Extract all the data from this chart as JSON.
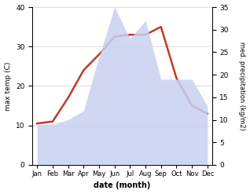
{
  "months": [
    "Jan",
    "Feb",
    "Mar",
    "Apr",
    "May",
    "Jun",
    "Jul",
    "Aug",
    "Sep",
    "Oct",
    "Nov",
    "Dec"
  ],
  "month_positions": [
    0,
    1,
    2,
    3,
    4,
    5,
    6,
    7,
    8,
    9,
    10,
    11
  ],
  "temperature": [
    10.5,
    11,
    17,
    24,
    28,
    32.5,
    33,
    33,
    35,
    22,
    15,
    13
  ],
  "precipitation": [
    9,
    9,
    10,
    12,
    24,
    35,
    28,
    32,
    19,
    19,
    19,
    13
  ],
  "temp_ylim": [
    0,
    40
  ],
  "precip_ylim": [
    0,
    35
  ],
  "temp_color": "#c0392b",
  "precip_fill_color": "#c8d0f0",
  "precip_fill_alpha": 0.85,
  "precip_line_color": "#aab4e8",
  "xlabel": "date (month)",
  "ylabel_left": "max temp (C)",
  "ylabel_right": "med. precipitation (kg/m2)",
  "temp_linewidth": 1.8,
  "left_yticks": [
    0,
    10,
    20,
    30,
    40
  ],
  "right_yticks": [
    0,
    5,
    10,
    15,
    20,
    25,
    30,
    35
  ],
  "background_color": "#ffffff"
}
